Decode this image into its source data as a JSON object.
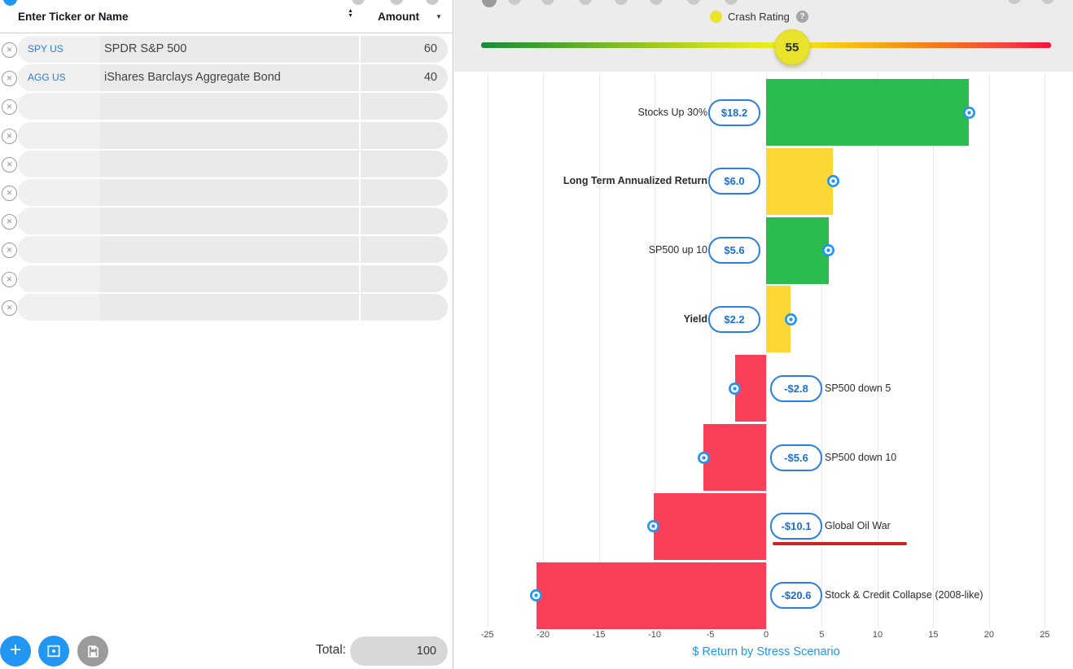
{
  "left_panel": {
    "header": {
      "title": "Enter Ticker or Name",
      "amount_label": "Amount"
    },
    "rows": [
      {
        "ticker": "SPY US",
        "name": "SPDR S&P 500",
        "amount": "60"
      },
      {
        "ticker": "AGG US",
        "name": "iShares Barclays Aggregate Bond",
        "amount": "40"
      },
      {
        "ticker": "",
        "name": "",
        "amount": ""
      },
      {
        "ticker": "",
        "name": "",
        "amount": ""
      },
      {
        "ticker": "",
        "name": "",
        "amount": ""
      },
      {
        "ticker": "",
        "name": "",
        "amount": ""
      },
      {
        "ticker": "",
        "name": "",
        "amount": ""
      },
      {
        "ticker": "",
        "name": "",
        "amount": ""
      },
      {
        "ticker": "",
        "name": "",
        "amount": ""
      },
      {
        "ticker": "",
        "name": "",
        "amount": ""
      }
    ],
    "footer": {
      "total_label": "Total:",
      "total_value": "100"
    }
  },
  "crash_rating": {
    "label": "Crash Rating",
    "value": "55"
  },
  "chart_data": {
    "type": "bar",
    "orientation": "horizontal",
    "categories": [
      "Stocks Up 30%",
      "Long Term Annualized Return",
      "SP500 up 10",
      "Yield",
      "SP500 down 5",
      "SP500 down 10",
      "Global Oil War",
      "Stock & Credit Collapse (2008-like)"
    ],
    "values": [
      18.2,
      6.0,
      5.6,
      2.2,
      -2.8,
      -5.6,
      -10.1,
      -20.6
    ],
    "value_labels": [
      "$18.2",
      "$6.0",
      "$5.6",
      "$2.2",
      "-$2.8",
      "-$5.6",
      "-$10.1",
      "-$20.6"
    ],
    "colors": [
      "green",
      "yellow",
      "green",
      "yellow",
      "red",
      "red",
      "red",
      "red"
    ],
    "emphasis": [
      false,
      true,
      false,
      true,
      false,
      false,
      false,
      false
    ],
    "annotations": [
      {
        "row_index": 6,
        "type": "red-underline"
      }
    ],
    "xlabel": "$ Return by Stress Scenario",
    "xlim": [
      -25,
      25
    ],
    "xticks": [
      -25,
      -20,
      -15,
      -10,
      -5,
      0,
      5,
      10,
      15,
      20,
      25
    ],
    "grid": "vertical"
  },
  "colors": {
    "green": "#2bbb4f",
    "yellow": "#fdd835",
    "red": "#fc3f58",
    "accent_blue": "#2196f3",
    "pill_border": "#2b80df",
    "pill_text": "#1a6fd4",
    "underline_red": "#c92525",
    "badge_yellow": "#e9e32b"
  }
}
